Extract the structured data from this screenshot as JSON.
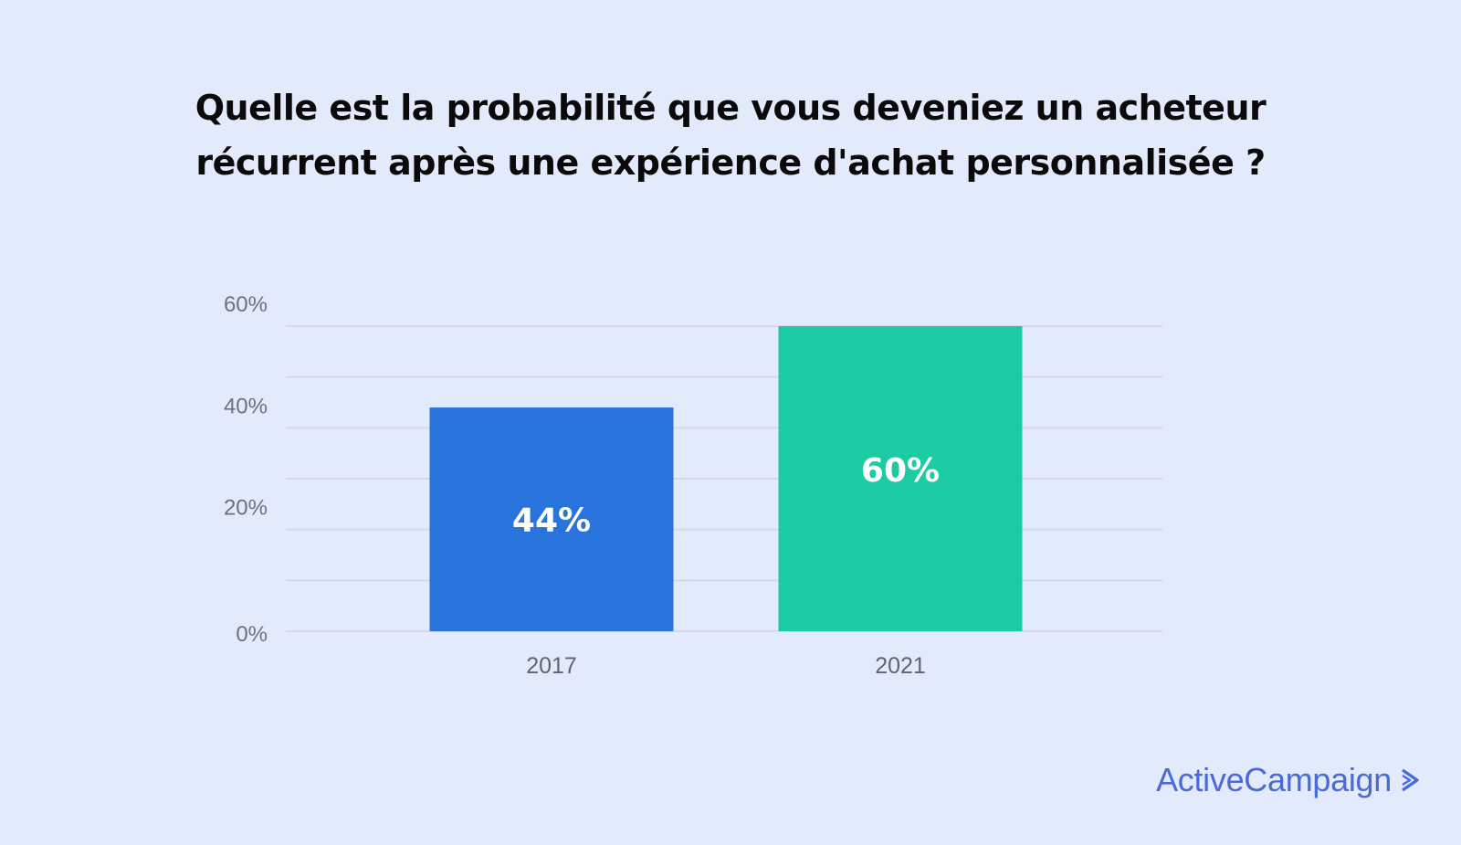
{
  "title_lines": [
    "Quelle est la probabilité que vous deveniez un acheteur",
    "récurrent après une expérience d'achat personnalisée ?"
  ],
  "brand": {
    "name": "ActiveCampaign",
    "icon": "chevron-right-icon",
    "color": "#4a6ad6"
  },
  "colors": {
    "background": "#e3eafb",
    "bar_2017": "#2874dc",
    "bar_2021": "#1dcba2"
  },
  "chart_data": {
    "type": "bar",
    "title": "Quelle est la probabilité que vous deveniez un acheteur récurrent après une expérience d'achat personnalisée ?",
    "categories": [
      "2017",
      "2021"
    ],
    "values": [
      44,
      60
    ],
    "value_labels": [
      "44%",
      "60%"
    ],
    "bar_colors": [
      "#2874dc",
      "#1dcba2"
    ],
    "xlabel": "",
    "ylabel": "",
    "ylim": [
      0,
      60
    ],
    "yticks": [
      0,
      20,
      40,
      60
    ],
    "ytick_labels": [
      "0%",
      "20%",
      "40%",
      "60%"
    ],
    "gridlines": [
      0,
      10,
      20,
      30,
      40,
      50,
      60
    ],
    "grid": true,
    "legend": "none"
  }
}
